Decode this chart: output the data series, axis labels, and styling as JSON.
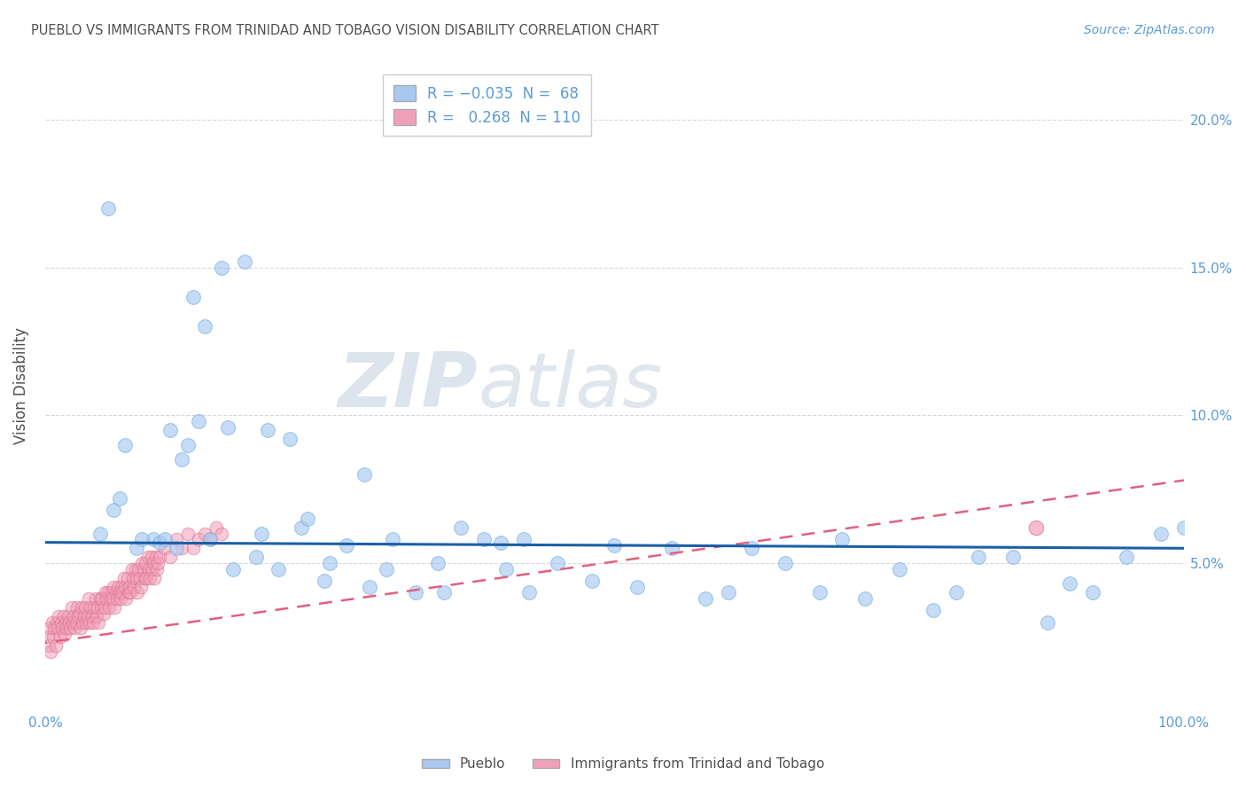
{
  "title": "PUEBLO VS IMMIGRANTS FROM TRINIDAD AND TOBAGO VISION DISABILITY CORRELATION CHART",
  "source": "Source: ZipAtlas.com",
  "ylabel": "Vision Disability",
  "watermark_zip": "ZIP",
  "watermark_atlas": "atlas",
  "xlim": [
    0,
    1.0
  ],
  "ylim": [
    0,
    0.22
  ],
  "pueblo_color": "#a8c8f0",
  "pueblo_edge": "#7ab3e0",
  "immig_color": "#f0a0b8",
  "immig_edge": "#e07090",
  "trendline_pueblo_color": "#1a5fa8",
  "trendline_immig_color": "#e06080",
  "grid_color": "#d8d8d8",
  "background_color": "#ffffff",
  "title_color": "#505050",
  "axis_color": "#5b9bd5",
  "tick_color": "#5b9bd5",
  "pueblo_intercept": 0.057,
  "pueblo_slope": -0.002,
  "immig_intercept": 0.023,
  "immig_slope": 0.055,
  "pueblo_R": -0.035,
  "pueblo_N": 68,
  "immig_R": 0.268,
  "immig_N": 110,
  "pueblo_x": [
    0.048,
    0.095,
    0.115,
    0.135,
    0.155,
    0.175,
    0.195,
    0.215,
    0.06,
    0.08,
    0.1,
    0.12,
    0.14,
    0.16,
    0.25,
    0.3,
    0.35,
    0.4,
    0.45,
    0.5,
    0.55,
    0.6,
    0.65,
    0.7,
    0.75,
    0.8,
    0.85,
    0.9,
    0.95,
    1.0,
    0.42,
    0.48,
    0.52,
    0.58,
    0.62,
    0.68,
    0.72,
    0.78,
    0.82,
    0.88,
    0.92,
    0.98,
    0.07,
    0.085,
    0.105,
    0.125,
    0.145,
    0.165,
    0.185,
    0.205,
    0.225,
    0.245,
    0.265,
    0.285,
    0.305,
    0.325,
    0.345,
    0.365,
    0.385,
    0.405,
    0.425,
    0.055,
    0.13,
    0.28,
    0.065,
    0.11,
    0.19,
    0.23
  ],
  "pueblo_y": [
    0.06,
    0.058,
    0.055,
    0.098,
    0.15,
    0.152,
    0.095,
    0.092,
    0.068,
    0.055,
    0.057,
    0.085,
    0.13,
    0.096,
    0.05,
    0.048,
    0.04,
    0.057,
    0.05,
    0.056,
    0.055,
    0.04,
    0.05,
    0.058,
    0.048,
    0.04,
    0.052,
    0.043,
    0.052,
    0.062,
    0.058,
    0.044,
    0.042,
    0.038,
    0.055,
    0.04,
    0.038,
    0.034,
    0.052,
    0.03,
    0.04,
    0.06,
    0.09,
    0.058,
    0.058,
    0.09,
    0.058,
    0.048,
    0.052,
    0.048,
    0.062,
    0.044,
    0.056,
    0.042,
    0.058,
    0.04,
    0.05,
    0.062,
    0.058,
    0.048,
    0.04,
    0.17,
    0.14,
    0.08,
    0.072,
    0.095,
    0.06,
    0.065
  ],
  "immig_x": [
    0.002,
    0.003,
    0.004,
    0.005,
    0.006,
    0.007,
    0.008,
    0.009,
    0.01,
    0.011,
    0.012,
    0.013,
    0.014,
    0.015,
    0.016,
    0.017,
    0.018,
    0.019,
    0.02,
    0.021,
    0.022,
    0.023,
    0.024,
    0.025,
    0.026,
    0.027,
    0.028,
    0.029,
    0.03,
    0.031,
    0.032,
    0.033,
    0.034,
    0.035,
    0.036,
    0.037,
    0.038,
    0.039,
    0.04,
    0.041,
    0.042,
    0.043,
    0.044,
    0.045,
    0.046,
    0.047,
    0.048,
    0.049,
    0.05,
    0.051,
    0.052,
    0.053,
    0.054,
    0.055,
    0.056,
    0.057,
    0.058,
    0.059,
    0.06,
    0.061,
    0.062,
    0.063,
    0.064,
    0.065,
    0.066,
    0.067,
    0.068,
    0.069,
    0.07,
    0.071,
    0.072,
    0.073,
    0.074,
    0.075,
    0.076,
    0.077,
    0.078,
    0.079,
    0.08,
    0.081,
    0.082,
    0.083,
    0.084,
    0.085,
    0.086,
    0.087,
    0.088,
    0.089,
    0.09,
    0.091,
    0.092,
    0.093,
    0.094,
    0.095,
    0.096,
    0.097,
    0.098,
    0.099,
    0.1,
    0.105,
    0.11,
    0.115,
    0.12,
    0.125,
    0.13,
    0.135,
    0.14,
    0.145,
    0.15,
    0.155
  ],
  "immig_y": [
    0.025,
    0.022,
    0.028,
    0.02,
    0.03,
    0.025,
    0.028,
    0.022,
    0.03,
    0.028,
    0.032,
    0.025,
    0.03,
    0.028,
    0.032,
    0.026,
    0.03,
    0.028,
    0.032,
    0.03,
    0.028,
    0.035,
    0.03,
    0.032,
    0.028,
    0.03,
    0.035,
    0.032,
    0.033,
    0.028,
    0.035,
    0.03,
    0.032,
    0.035,
    0.03,
    0.032,
    0.038,
    0.03,
    0.035,
    0.032,
    0.03,
    0.035,
    0.038,
    0.032,
    0.035,
    0.03,
    0.038,
    0.035,
    0.038,
    0.033,
    0.035,
    0.04,
    0.038,
    0.04,
    0.035,
    0.038,
    0.04,
    0.038,
    0.042,
    0.035,
    0.04,
    0.038,
    0.042,
    0.04,
    0.038,
    0.042,
    0.04,
    0.045,
    0.042,
    0.038,
    0.045,
    0.04,
    0.042,
    0.04,
    0.048,
    0.045,
    0.042,
    0.048,
    0.045,
    0.04,
    0.048,
    0.045,
    0.042,
    0.05,
    0.048,
    0.045,
    0.05,
    0.045,
    0.052,
    0.048,
    0.045,
    0.052,
    0.048,
    0.05,
    0.045,
    0.052,
    0.048,
    0.05,
    0.052,
    0.055,
    0.052,
    0.058,
    0.055,
    0.06,
    0.055,
    0.058,
    0.06,
    0.058,
    0.062,
    0.06
  ],
  "immig_outlier_x": [
    0.87
  ],
  "immig_outlier_y": [
    0.062
  ]
}
